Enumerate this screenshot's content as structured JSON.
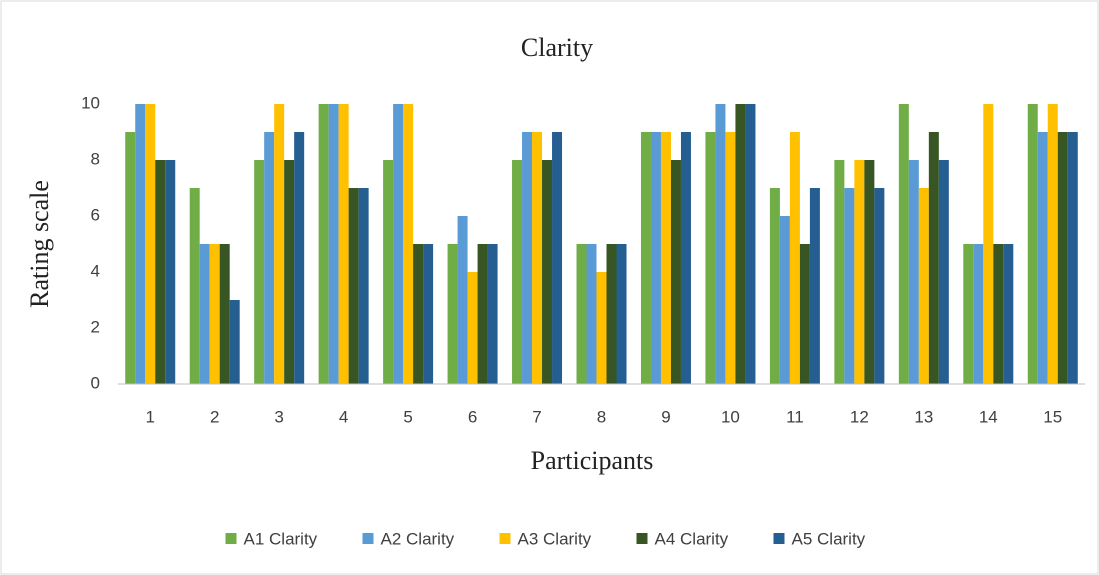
{
  "chart_data": {
    "type": "bar",
    "title": "Clarity",
    "x_label": "Participants",
    "y_label": "Rating scale",
    "categories": [
      "1",
      "2",
      "3",
      "4",
      "5",
      "6",
      "7",
      "8",
      "9",
      "10",
      "11",
      "12",
      "13",
      "14",
      "15"
    ],
    "series": [
      {
        "name": "A1 Clarity",
        "color": "#70ad47",
        "values": [
          9,
          7,
          8,
          10,
          8,
          5,
          8,
          5,
          9,
          9,
          7,
          8,
          10,
          5,
          10
        ]
      },
      {
        "name": "A2 Clarity",
        "color": "#5b9bd5",
        "values": [
          10,
          5,
          9,
          10,
          10,
          6,
          9,
          5,
          9,
          10,
          6,
          7,
          8,
          5,
          9
        ]
      },
      {
        "name": "A3 Clarity",
        "color": "#ffc000",
        "values": [
          10,
          5,
          10,
          10,
          10,
          4,
          9,
          4,
          9,
          9,
          9,
          8,
          7,
          10,
          10
        ]
      },
      {
        "name": "A4 Clarity",
        "color": "#375623",
        "values": [
          8,
          5,
          8,
          7,
          5,
          5,
          8,
          5,
          8,
          10,
          5,
          8,
          9,
          5,
          9
        ]
      },
      {
        "name": "A5 Clarity",
        "color": "#255e91",
        "values": [
          8,
          3,
          9,
          7,
          5,
          5,
          9,
          5,
          9,
          10,
          7,
          7,
          8,
          5,
          9
        ]
      }
    ],
    "ylim": [
      0,
      10
    ],
    "yticks": [
      0,
      2,
      4,
      6,
      8,
      10
    ],
    "grid": false,
    "legend": "bottom"
  }
}
